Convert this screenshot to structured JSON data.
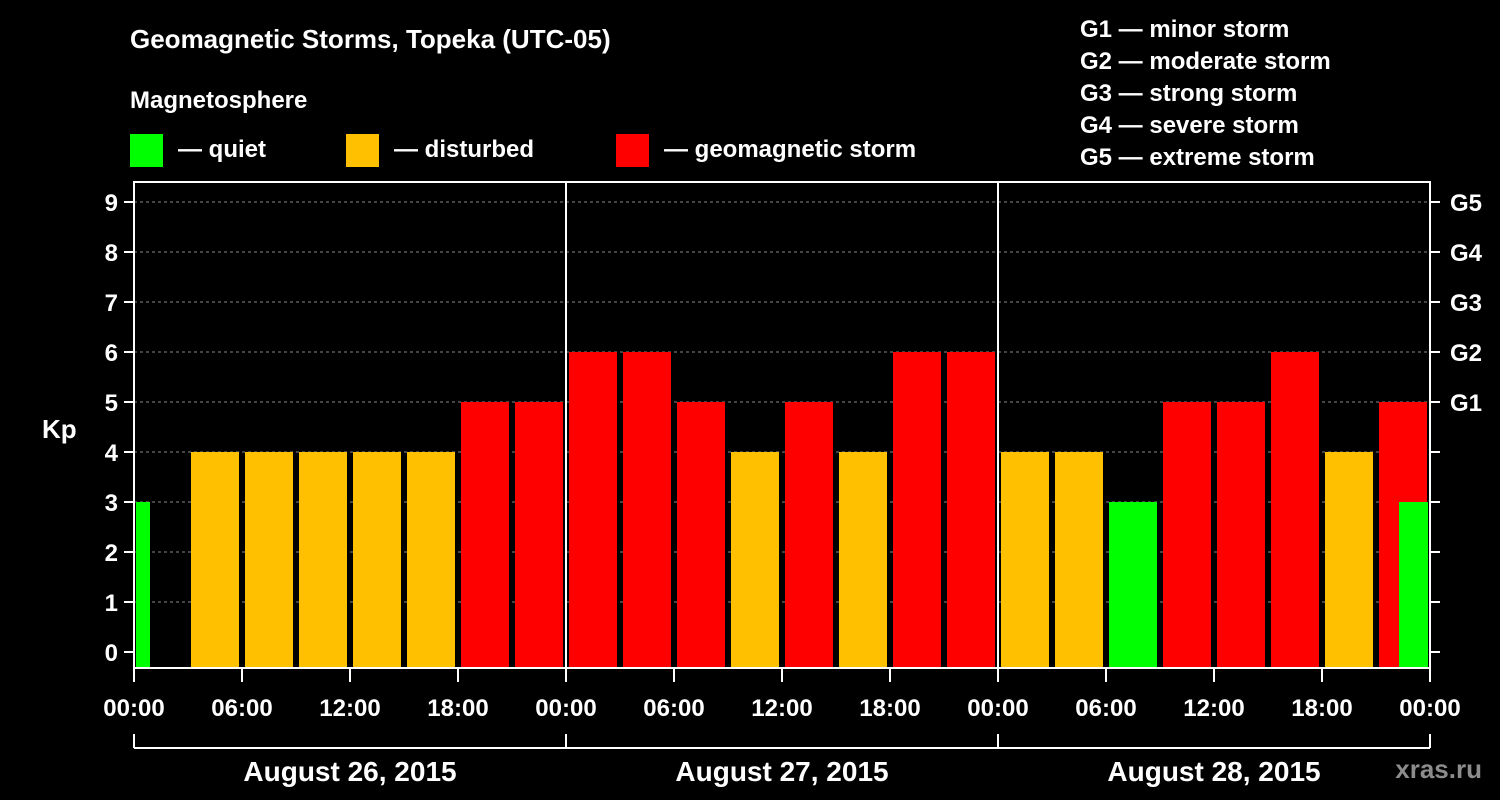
{
  "chart_data": {
    "type": "bar",
    "title": "Geomagnetic Storms, Topeka (UTC-05)",
    "subtitle": "Magnetosphere",
    "ylabel": "Kp",
    "ylim": [
      0,
      9
    ],
    "yticks": [
      "0",
      "1",
      "2",
      "3",
      "4",
      "5",
      "6",
      "7",
      "8",
      "9"
    ],
    "storm_scale_labels": [
      {
        "kp": 5,
        "label": "G1"
      },
      {
        "kp": 6,
        "label": "G2"
      },
      {
        "kp": 7,
        "label": "G3"
      },
      {
        "kp": 8,
        "label": "G4"
      },
      {
        "kp": 9,
        "label": "G5"
      }
    ],
    "storm_scale_legend": [
      "G1 — minor storm",
      "G2 — moderate storm",
      "G3 — strong storm",
      "G4 — severe storm",
      "G5 — extreme storm"
    ],
    "status_legend": [
      {
        "label": "— quiet",
        "color": "#00ff00"
      },
      {
        "label": "— disturbed",
        "color": "#ffc000"
      },
      {
        "label": "— geomagnetic storm",
        "color": "#ff0000"
      }
    ],
    "x_range_hours": [
      0,
      72
    ],
    "xticks": [
      "00:00",
      "06:00",
      "12:00",
      "18:00",
      "00:00",
      "06:00",
      "12:00",
      "18:00",
      "00:00",
      "06:00",
      "12:00",
      "18:00",
      "00:00"
    ],
    "days": [
      "August 26, 2015",
      "August 27, 2015",
      "August 28, 2015"
    ],
    "bars": [
      {
        "hour": 0,
        "kp": 3,
        "status": "quiet"
      },
      {
        "hour": 3,
        "kp": 4,
        "status": "disturbed"
      },
      {
        "hour": 6,
        "kp": 4,
        "status": "disturbed"
      },
      {
        "hour": 9,
        "kp": 4,
        "status": "disturbed"
      },
      {
        "hour": 12,
        "kp": 4,
        "status": "disturbed"
      },
      {
        "hour": 15,
        "kp": 4,
        "status": "disturbed"
      },
      {
        "hour": 18,
        "kp": 5,
        "status": "storm"
      },
      {
        "hour": 21,
        "kp": 5,
        "status": "storm"
      },
      {
        "hour": 24,
        "kp": 6,
        "status": "storm"
      },
      {
        "hour": 27,
        "kp": 6,
        "status": "storm"
      },
      {
        "hour": 30,
        "kp": 5,
        "status": "storm"
      },
      {
        "hour": 33,
        "kp": 4,
        "status": "disturbed"
      },
      {
        "hour": 36,
        "kp": 5,
        "status": "storm"
      },
      {
        "hour": 39,
        "kp": 4,
        "status": "disturbed"
      },
      {
        "hour": 42,
        "kp": 6,
        "status": "storm"
      },
      {
        "hour": 45,
        "kp": 6,
        "status": "storm"
      },
      {
        "hour": 48,
        "kp": 4,
        "status": "disturbed"
      },
      {
        "hour": 51,
        "kp": 4,
        "status": "disturbed"
      },
      {
        "hour": 54,
        "kp": 3,
        "status": "quiet"
      },
      {
        "hour": 57,
        "kp": 5,
        "status": "storm"
      },
      {
        "hour": 60,
        "kp": 5,
        "status": "storm"
      },
      {
        "hour": 63,
        "kp": 6,
        "status": "storm"
      },
      {
        "hour": 66,
        "kp": 4,
        "status": "disturbed"
      },
      {
        "hour": 69,
        "kp": 5,
        "status": "storm"
      },
      {
        "hour": 72,
        "kp": 3,
        "status": "quiet"
      }
    ],
    "colors": {
      "quiet": "#00ff00",
      "disturbed": "#ffc000",
      "storm": "#ff0000"
    },
    "watermark": "xras.ru"
  }
}
